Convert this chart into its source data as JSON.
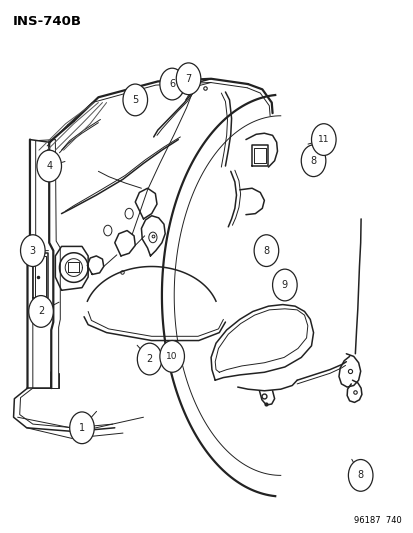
{
  "title": "INS-740B",
  "bottom_text": "96187  740",
  "bg": "#ffffff",
  "fw": 4.14,
  "fh": 5.33,
  "dpi": 100,
  "callouts": [
    [
      1,
      0.195,
      0.195,
      0.235,
      0.23
    ],
    [
      2,
      0.095,
      0.415,
      0.145,
      0.435
    ],
    [
      2,
      0.36,
      0.325,
      0.325,
      0.355
    ],
    [
      3,
      0.075,
      0.53,
      0.12,
      0.53
    ],
    [
      4,
      0.115,
      0.69,
      0.16,
      0.7
    ],
    [
      5,
      0.325,
      0.815,
      0.35,
      0.8
    ],
    [
      6,
      0.415,
      0.845,
      0.43,
      0.83
    ],
    [
      7,
      0.455,
      0.855,
      0.455,
      0.84
    ],
    [
      8,
      0.76,
      0.7,
      0.73,
      0.695
    ],
    [
      8,
      0.645,
      0.53,
      0.615,
      0.545
    ],
    [
      8,
      0.875,
      0.105,
      0.85,
      0.14
    ],
    [
      9,
      0.69,
      0.465,
      0.66,
      0.48
    ],
    [
      10,
      0.415,
      0.33,
      0.395,
      0.355
    ],
    [
      11,
      0.785,
      0.74,
      0.74,
      0.73
    ]
  ]
}
